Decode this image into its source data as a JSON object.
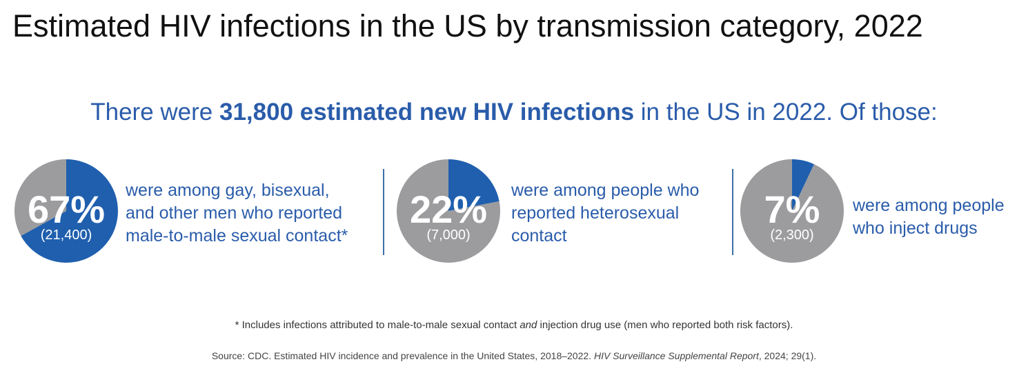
{
  "title": "Estimated HIV infections in the US by transmission category, 2022",
  "headline": {
    "pre": "There were ",
    "bold": "31,800 estimated new HIV infections",
    "post": " in the US in 2022. Of those:"
  },
  "colors": {
    "highlight": "#1f5fae",
    "rest": "#9c9c9f",
    "text": "#2a5caa"
  },
  "chart_data": [
    {
      "type": "pie",
      "slices": [
        {
          "value": 67,
          "color": "#1f5fae"
        },
        {
          "value": 33,
          "color": "#9c9c9f"
        }
      ],
      "label": "67%",
      "count": "(21,400)",
      "description": [
        "were among gay, bisexual,",
        "and other men who reported",
        "male-to-male sexual contact*"
      ]
    },
    {
      "type": "pie",
      "slices": [
        {
          "value": 22,
          "color": "#1f5fae"
        },
        {
          "value": 78,
          "color": "#9c9c9f"
        }
      ],
      "label": "22%",
      "count": "(7,000)",
      "description": [
        "were among people who",
        "reported heterosexual",
        "contact"
      ]
    },
    {
      "type": "pie",
      "slices": [
        {
          "value": 7,
          "color": "#1f5fae"
        },
        {
          "value": 93,
          "color": "#9c9c9f"
        }
      ],
      "label": "7%",
      "count": "(2,300)",
      "description": [
        "were among people",
        "who inject drugs"
      ]
    }
  ],
  "footnote": {
    "pre": "* Includes infections attributed to male-to-male sexual contact ",
    "italic": "and",
    "post": " injection drug use (men who reported both risk factors)."
  },
  "source": {
    "pre": "Source: CDC. Estimated HIV incidence and prevalence in the United States, 2018–2022. ",
    "italic": "HIV Surveillance Supplemental Report",
    "post": ", 2024; 29(1)."
  }
}
